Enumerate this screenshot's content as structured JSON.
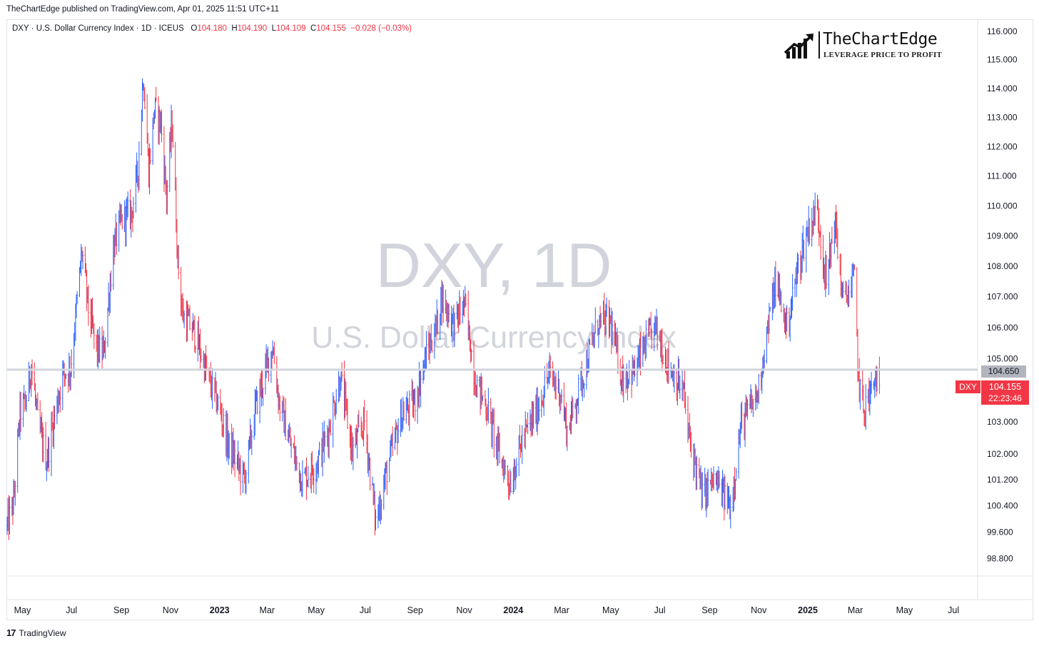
{
  "header": {
    "published_line": "TheChartEdge published on TradingView.com, Apr 01, 2025 11:51 UTC+11"
  },
  "legend": {
    "symbol": "DXY",
    "description": "U.S. Dollar Currency Index",
    "interval": "1D",
    "exchange": "ICEUS",
    "open_label": "O",
    "open": "104.180",
    "high_label": "H",
    "high": "104.190",
    "low_label": "L",
    "low": "104.109",
    "close_label": "C",
    "close": "104.155",
    "change": "−0.028 (−0.03%)"
  },
  "watermark": {
    "line1": "DXY, 1D",
    "line2": "U.S. Dollar Currency Index"
  },
  "logo": {
    "name": "TheChartEdge",
    "tagline": "LEVERAGE PRICE TO PROFIT",
    "icon": "rising-bars-arrow-icon"
  },
  "price_tags": {
    "symbol_tag": "DXY",
    "last_price": "104.155",
    "countdown": "22:23:46",
    "hline_price": "104.650"
  },
  "footer": {
    "brand": "TradingView",
    "icon": "tradingview-logo-icon"
  },
  "colors": {
    "up": "#2962ff",
    "down": "#f23645",
    "hline": "#d1d4dc",
    "grid_text": "#131722",
    "watermark": "#d1d4dc"
  },
  "chart_data": {
    "type": "ohlc-bar",
    "symbol": "DXY",
    "interval": "1D",
    "ylim": [
      98.3,
      116.4
    ],
    "y_scale": "log",
    "y_ticks": [
      116.0,
      115.0,
      114.0,
      113.0,
      112.0,
      111.0,
      110.0,
      109.0,
      108.0,
      107.0,
      106.0,
      105.0,
      103.0,
      102.0,
      101.2,
      100.4,
      99.6,
      98.8
    ],
    "y_tick_labels": [
      "116.000",
      "115.000",
      "114.000",
      "113.000",
      "112.000",
      "111.000",
      "110.000",
      "109.000",
      "108.000",
      "107.000",
      "106.000",
      "105.000",
      "103.000",
      "102.000",
      "101.200",
      "100.400",
      "99.600",
      "98.800"
    ],
    "x_start": "2022-04-12",
    "x_end": "2025-07-31",
    "x_ticks": [
      {
        "label": "May",
        "date": "2022-05-01",
        "bold": false
      },
      {
        "label": "Jul",
        "date": "2022-07-01",
        "bold": false
      },
      {
        "label": "Sep",
        "date": "2022-09-01",
        "bold": false
      },
      {
        "label": "Nov",
        "date": "2022-11-01",
        "bold": false
      },
      {
        "label": "2023",
        "date": "2023-01-01",
        "bold": true
      },
      {
        "label": "Mar",
        "date": "2023-03-01",
        "bold": false
      },
      {
        "label": "May",
        "date": "2023-05-01",
        "bold": false
      },
      {
        "label": "Jul",
        "date": "2023-07-01",
        "bold": false
      },
      {
        "label": "Sep",
        "date": "2023-09-01",
        "bold": false
      },
      {
        "label": "Nov",
        "date": "2023-11-01",
        "bold": false
      },
      {
        "label": "2024",
        "date": "2024-01-01",
        "bold": true
      },
      {
        "label": "Mar",
        "date": "2024-03-01",
        "bold": false
      },
      {
        "label": "May",
        "date": "2024-05-01",
        "bold": false
      },
      {
        "label": "Jul",
        "date": "2024-07-01",
        "bold": false
      },
      {
        "label": "Sep",
        "date": "2024-09-01",
        "bold": false
      },
      {
        "label": "Nov",
        "date": "2024-11-01",
        "bold": false
      },
      {
        "label": "2025",
        "date": "2025-01-01",
        "bold": true
      },
      {
        "label": "Mar",
        "date": "2025-03-01",
        "bold": false
      },
      {
        "label": "May",
        "date": "2025-05-01",
        "bold": false
      },
      {
        "label": "Jul",
        "date": "2025-07-01",
        "bold": false
      }
    ],
    "horizontal_line": 104.65,
    "last_close": 104.155,
    "approx_daily_close_path": [
      [
        "2022-04-12",
        99.8
      ],
      [
        "2022-04-20",
        100.5
      ],
      [
        "2022-04-28",
        103.3
      ],
      [
        "2022-05-05",
        103.6
      ],
      [
        "2022-05-12",
        104.8
      ],
      [
        "2022-05-20",
        103.0
      ],
      [
        "2022-05-31",
        101.8
      ],
      [
        "2022-06-10",
        103.2
      ],
      [
        "2022-06-20",
        104.5
      ],
      [
        "2022-06-30",
        104.7
      ],
      [
        "2022-07-14",
        108.5
      ],
      [
        "2022-07-22",
        106.6
      ],
      [
        "2022-08-01",
        105.3
      ],
      [
        "2022-08-10",
        105.2
      ],
      [
        "2022-08-22",
        108.6
      ],
      [
        "2022-09-01",
        109.5
      ],
      [
        "2022-09-14",
        109.8
      ],
      [
        "2022-09-22",
        111.3
      ],
      [
        "2022-09-28",
        114.5
      ],
      [
        "2022-10-05",
        111.2
      ],
      [
        "2022-10-12",
        113.3
      ],
      [
        "2022-10-20",
        112.8
      ],
      [
        "2022-10-27",
        110.3
      ],
      [
        "2022-11-03",
        112.9
      ],
      [
        "2022-11-10",
        108.2
      ],
      [
        "2022-11-16",
        106.4
      ],
      [
        "2022-11-30",
        105.9
      ],
      [
        "2022-12-12",
        104.9
      ],
      [
        "2022-12-20",
        104.2
      ],
      [
        "2022-12-31",
        103.5
      ],
      [
        "2023-01-12",
        102.3
      ],
      [
        "2023-02-01",
        101.2
      ],
      [
        "2023-02-15",
        103.5
      ],
      [
        "2023-03-08",
        105.4
      ],
      [
        "2023-03-16",
        103.6
      ],
      [
        "2023-03-31",
        102.2
      ],
      [
        "2023-04-14",
        101.2
      ],
      [
        "2023-05-01",
        101.7
      ],
      [
        "2023-05-15",
        102.6
      ],
      [
        "2023-05-31",
        104.4
      ],
      [
        "2023-06-15",
        102.1
      ],
      [
        "2023-06-30",
        103.0
      ],
      [
        "2023-07-14",
        99.9
      ],
      [
        "2023-07-28",
        101.5
      ],
      [
        "2023-08-15",
        103.2
      ],
      [
        "2023-08-31",
        103.6
      ],
      [
        "2023-09-15",
        105.1
      ],
      [
        "2023-09-29",
        106.2
      ],
      [
        "2023-10-03",
        107.0
      ],
      [
        "2023-10-20",
        106.1
      ],
      [
        "2023-11-01",
        106.8
      ],
      [
        "2023-11-15",
        104.3
      ],
      [
        "2023-11-30",
        103.4
      ],
      [
        "2023-12-14",
        102.0
      ],
      [
        "2023-12-28",
        101.1
      ],
      [
        "2024-01-12",
        102.4
      ],
      [
        "2024-01-31",
        103.4
      ],
      [
        "2024-02-14",
        104.5
      ],
      [
        "2024-02-28",
        104.0
      ],
      [
        "2024-03-08",
        102.7
      ],
      [
        "2024-03-28",
        104.5
      ],
      [
        "2024-04-16",
        106.2
      ],
      [
        "2024-04-30",
        106.2
      ],
      [
        "2024-05-15",
        104.4
      ],
      [
        "2024-05-31",
        104.6
      ],
      [
        "2024-06-14",
        105.5
      ],
      [
        "2024-06-26",
        106.0
      ],
      [
        "2024-07-10",
        104.9
      ],
      [
        "2024-07-31",
        103.9
      ],
      [
        "2024-08-05",
        102.7
      ],
      [
        "2024-08-23",
        100.7
      ],
      [
        "2024-09-06",
        101.2
      ],
      [
        "2024-09-27",
        100.4
      ],
      [
        "2024-10-10",
        102.9
      ],
      [
        "2024-10-31",
        103.9
      ],
      [
        "2024-11-06",
        105.0
      ],
      [
        "2024-11-22",
        107.5
      ],
      [
        "2024-12-06",
        106.0
      ],
      [
        "2024-12-20",
        108.0
      ],
      [
        "2025-01-02",
        109.3
      ],
      [
        "2025-01-13",
        109.9
      ],
      [
        "2025-01-24",
        107.4
      ],
      [
        "2025-02-03",
        109.6
      ],
      [
        "2025-02-14",
        106.8
      ],
      [
        "2025-02-28",
        107.6
      ],
      [
        "2025-03-05",
        104.3
      ],
      [
        "2025-03-11",
        103.4
      ],
      [
        "2025-03-20",
        103.9
      ],
      [
        "2025-03-27",
        104.4
      ],
      [
        "2025-03-31",
        104.155
      ]
    ]
  }
}
